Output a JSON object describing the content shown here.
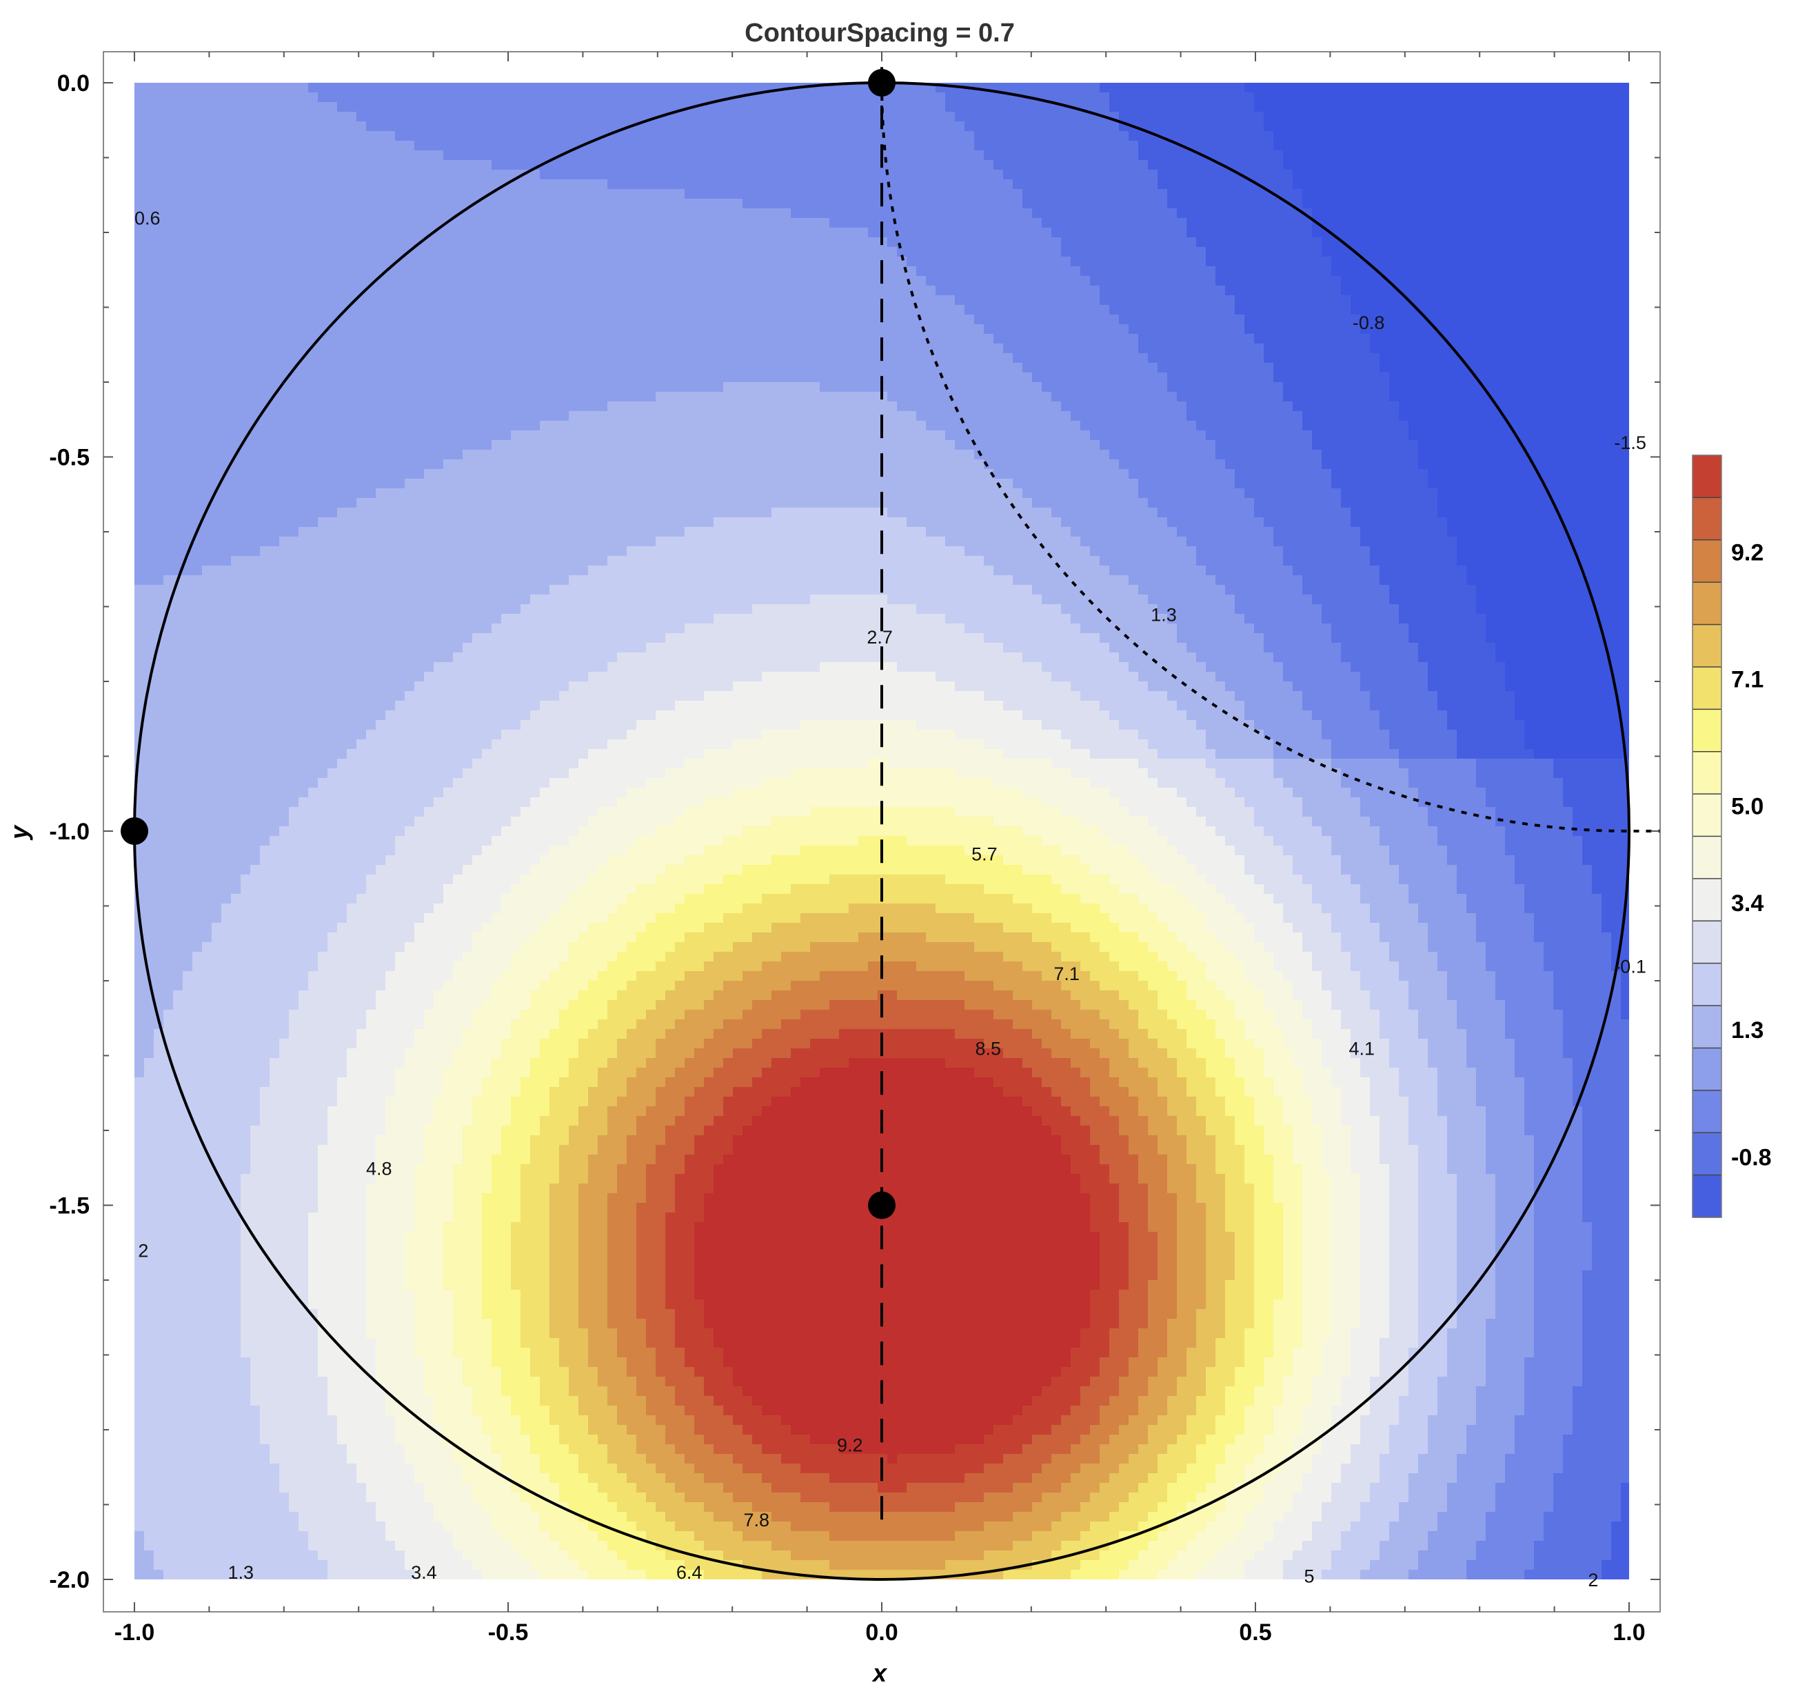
{
  "chart_data": {
    "type": "heatmap",
    "title": "ContourSpacing = 0.7",
    "xlabel": "x",
    "ylabel": "y",
    "xlim": [
      -1.0,
      1.0
    ],
    "ylim": [
      -2.0,
      0.0
    ],
    "x_ticks": [
      "-1.0",
      "-0.5",
      "0.0",
      "0.5",
      "1.0"
    ],
    "x_tick_values": [
      -1.0,
      -0.5,
      0.0,
      0.5,
      1.0
    ],
    "y_ticks": [
      "0.0",
      "-0.5",
      "-1.0",
      "-1.5",
      "-2.0"
    ],
    "y_tick_values": [
      0.0,
      -0.5,
      -1.0,
      -1.5,
      -2.0
    ],
    "contour_spacing": 0.7,
    "colors": {
      "low": "#3b55e0",
      "mid": "#f4f5ee",
      "yellow": "#fbf67a",
      "high": "#c0302e",
      "frame": "#888888"
    },
    "legend": {
      "placement": "right",
      "labels": [
        "9.2",
        "7.1",
        "5.0",
        "3.4",
        "1.3",
        "-0.8"
      ],
      "label_values": [
        9.2,
        7.1,
        5.0,
        3.4,
        1.3,
        -0.8
      ],
      "min": -1.8,
      "max": 10.8,
      "band_step": 0.7
    },
    "contour_labels": [
      {
        "text": "0.6",
        "x": -1.0,
        "y": -0.18
      },
      {
        "text": "-0.8",
        "x": 0.63,
        "y": -0.32
      },
      {
        "text": "-1.5",
        "x": 0.98,
        "y": -0.48
      },
      {
        "text": "1.3",
        "x": 0.36,
        "y": -0.71
      },
      {
        "text": "2.7",
        "x": -0.02,
        "y": -0.74
      },
      {
        "text": "5.7",
        "x": 0.12,
        "y": -1.03
      },
      {
        "text": "-0.1",
        "x": 0.98,
        "y": -1.18
      },
      {
        "text": "7.1",
        "x": 0.23,
        "y": -1.19
      },
      {
        "text": "8.5",
        "x": 0.125,
        "y": -1.29
      },
      {
        "text": "4.1",
        "x": 0.625,
        "y": -1.29
      },
      {
        "text": "4.8",
        "x": -0.69,
        "y": -1.45
      },
      {
        "text": "2",
        "x": -0.995,
        "y": -1.56
      },
      {
        "text": "9.2",
        "x": -0.06,
        "y": -1.82
      },
      {
        "text": "7.8",
        "x": -0.185,
        "y": -1.92
      },
      {
        "text": "1.3",
        "x": -0.875,
        "y": -1.99
      },
      {
        "text": "3.4",
        "x": -0.63,
        "y": -1.99
      },
      {
        "text": "6.4",
        "x": -0.275,
        "y": -1.99
      },
      {
        "text": "5",
        "x": 0.565,
        "y": -1.995
      },
      {
        "text": "2",
        "x": 0.945,
        "y": -2.0
      }
    ],
    "overlay": {
      "circle": {
        "center": [
          0.0,
          -1.0
        ],
        "radius": 1.0
      },
      "points": [
        [
          0.0,
          0.0
        ],
        [
          -1.0,
          -1.0
        ],
        [
          0.0,
          -1.5
        ]
      ],
      "dashed_line": {
        "x": 0.0,
        "from_y": -1.92,
        "to_y": 0.04
      },
      "dotted_arc": {
        "center": [
          1.0,
          0.0
        ],
        "radius": 1.0
      }
    }
  }
}
